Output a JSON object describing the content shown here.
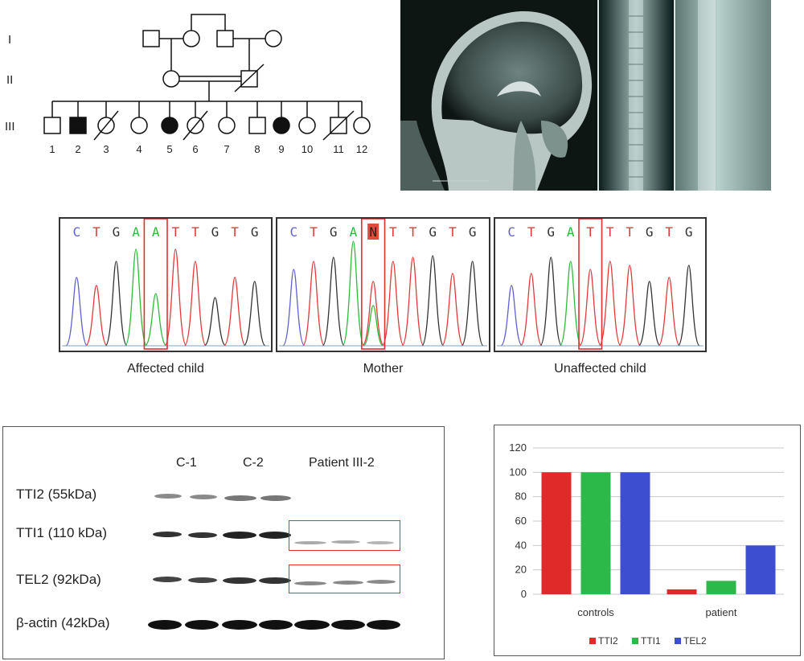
{
  "pedigree": {
    "generations": [
      "I",
      "II",
      "III"
    ],
    "individuals": [
      "1",
      "2",
      "3",
      "4",
      "5",
      "6",
      "7",
      "8",
      "9",
      "10",
      "11",
      "12"
    ]
  },
  "chromatograms": {
    "sequence": [
      "C",
      "T",
      "G",
      "A",
      "A",
      "T",
      "T",
      "G",
      "T",
      "G"
    ],
    "panels": [
      {
        "label": "Affected child",
        "bases": [
          "C",
          "T",
          "G",
          "A",
          "A",
          "T",
          "T",
          "G",
          "T",
          "G"
        ]
      },
      {
        "label": "Mother",
        "bases": [
          "C",
          "T",
          "G",
          "A",
          "N",
          "T",
          "T",
          "G",
          "T",
          "G"
        ]
      },
      {
        "label": "Unaffected child",
        "bases": [
          "C",
          "T",
          "G",
          "A",
          "T",
          "T",
          "T",
          "G",
          "T",
          "G"
        ]
      }
    ],
    "colors": {
      "C": "#6060d0",
      "T": "#e03b3b",
      "G": "#333333",
      "A": "#2dbb3a",
      "N": "#e03b3b"
    }
  },
  "western": {
    "lanes": [
      "C-1",
      "C-2",
      "Patient III-2"
    ],
    "proteins": [
      "TTI2 (55kDa)",
      "TTI1 (110 kDa)",
      "TEL2 (92kDa)",
      "β-actin (42kDa)"
    ]
  },
  "chart_data": {
    "type": "bar",
    "categories": [
      "controls",
      "patient"
    ],
    "series": [
      {
        "name": "TTI2",
        "color": "#e02a2a",
        "values": [
          100,
          4
        ]
      },
      {
        "name": "TTI1",
        "color": "#2db84a",
        "values": [
          100,
          11
        ]
      },
      {
        "name": "TEL2",
        "color": "#3d4fd0",
        "values": [
          100,
          40
        ]
      }
    ],
    "ylim": [
      0,
      120
    ],
    "yticks": [
      0,
      20,
      40,
      60,
      80,
      100,
      120
    ],
    "grid": true,
    "legend": "bottom"
  }
}
